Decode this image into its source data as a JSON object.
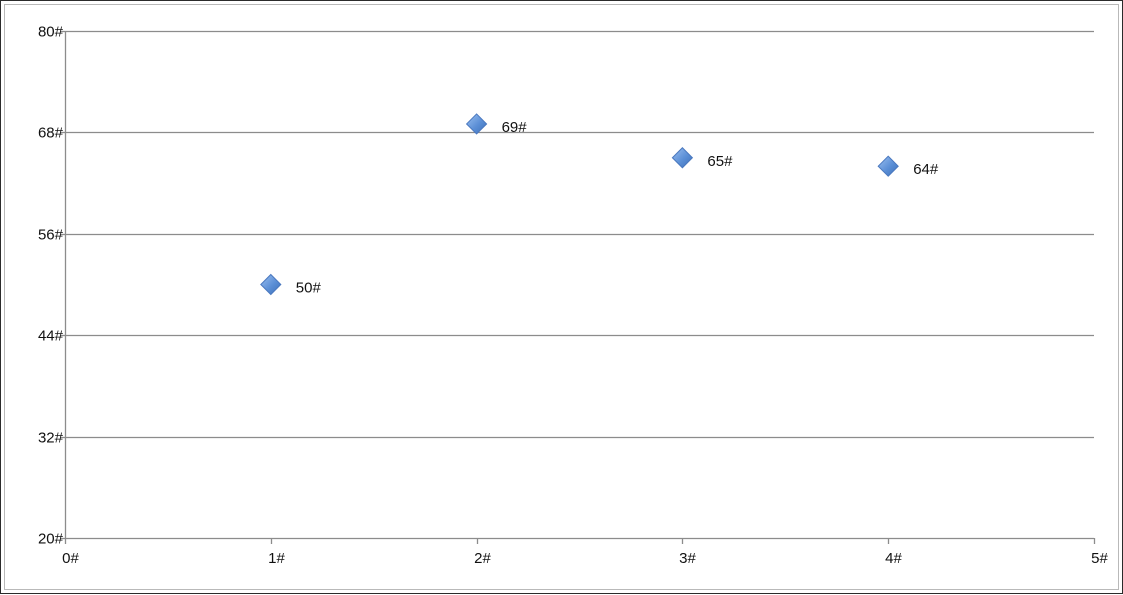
{
  "chart_data": {
    "type": "scatter",
    "xlim": [
      0,
      5
    ],
    "ylim": [
      20,
      80
    ],
    "x_ticks": [
      "0#",
      "1#",
      "2#",
      "3#",
      "4#",
      "5#"
    ],
    "y_ticks": [
      "20#",
      "32#",
      "44#",
      "56#",
      "68#",
      "80#"
    ],
    "x_tick_values": [
      0,
      1,
      2,
      3,
      4,
      5
    ],
    "y_tick_values": [
      20,
      32,
      44,
      56,
      68,
      80
    ],
    "grid": true,
    "legend": "none",
    "marker": "diamond",
    "marker_color": "#5b8fd6",
    "gridline_color": "#8c8c8c",
    "series": [
      {
        "x": [
          1,
          2,
          3,
          4
        ],
        "y": [
          50,
          69,
          65,
          64
        ],
        "labels": [
          "50#",
          "69#",
          "65#",
          "64#"
        ]
      }
    ]
  }
}
